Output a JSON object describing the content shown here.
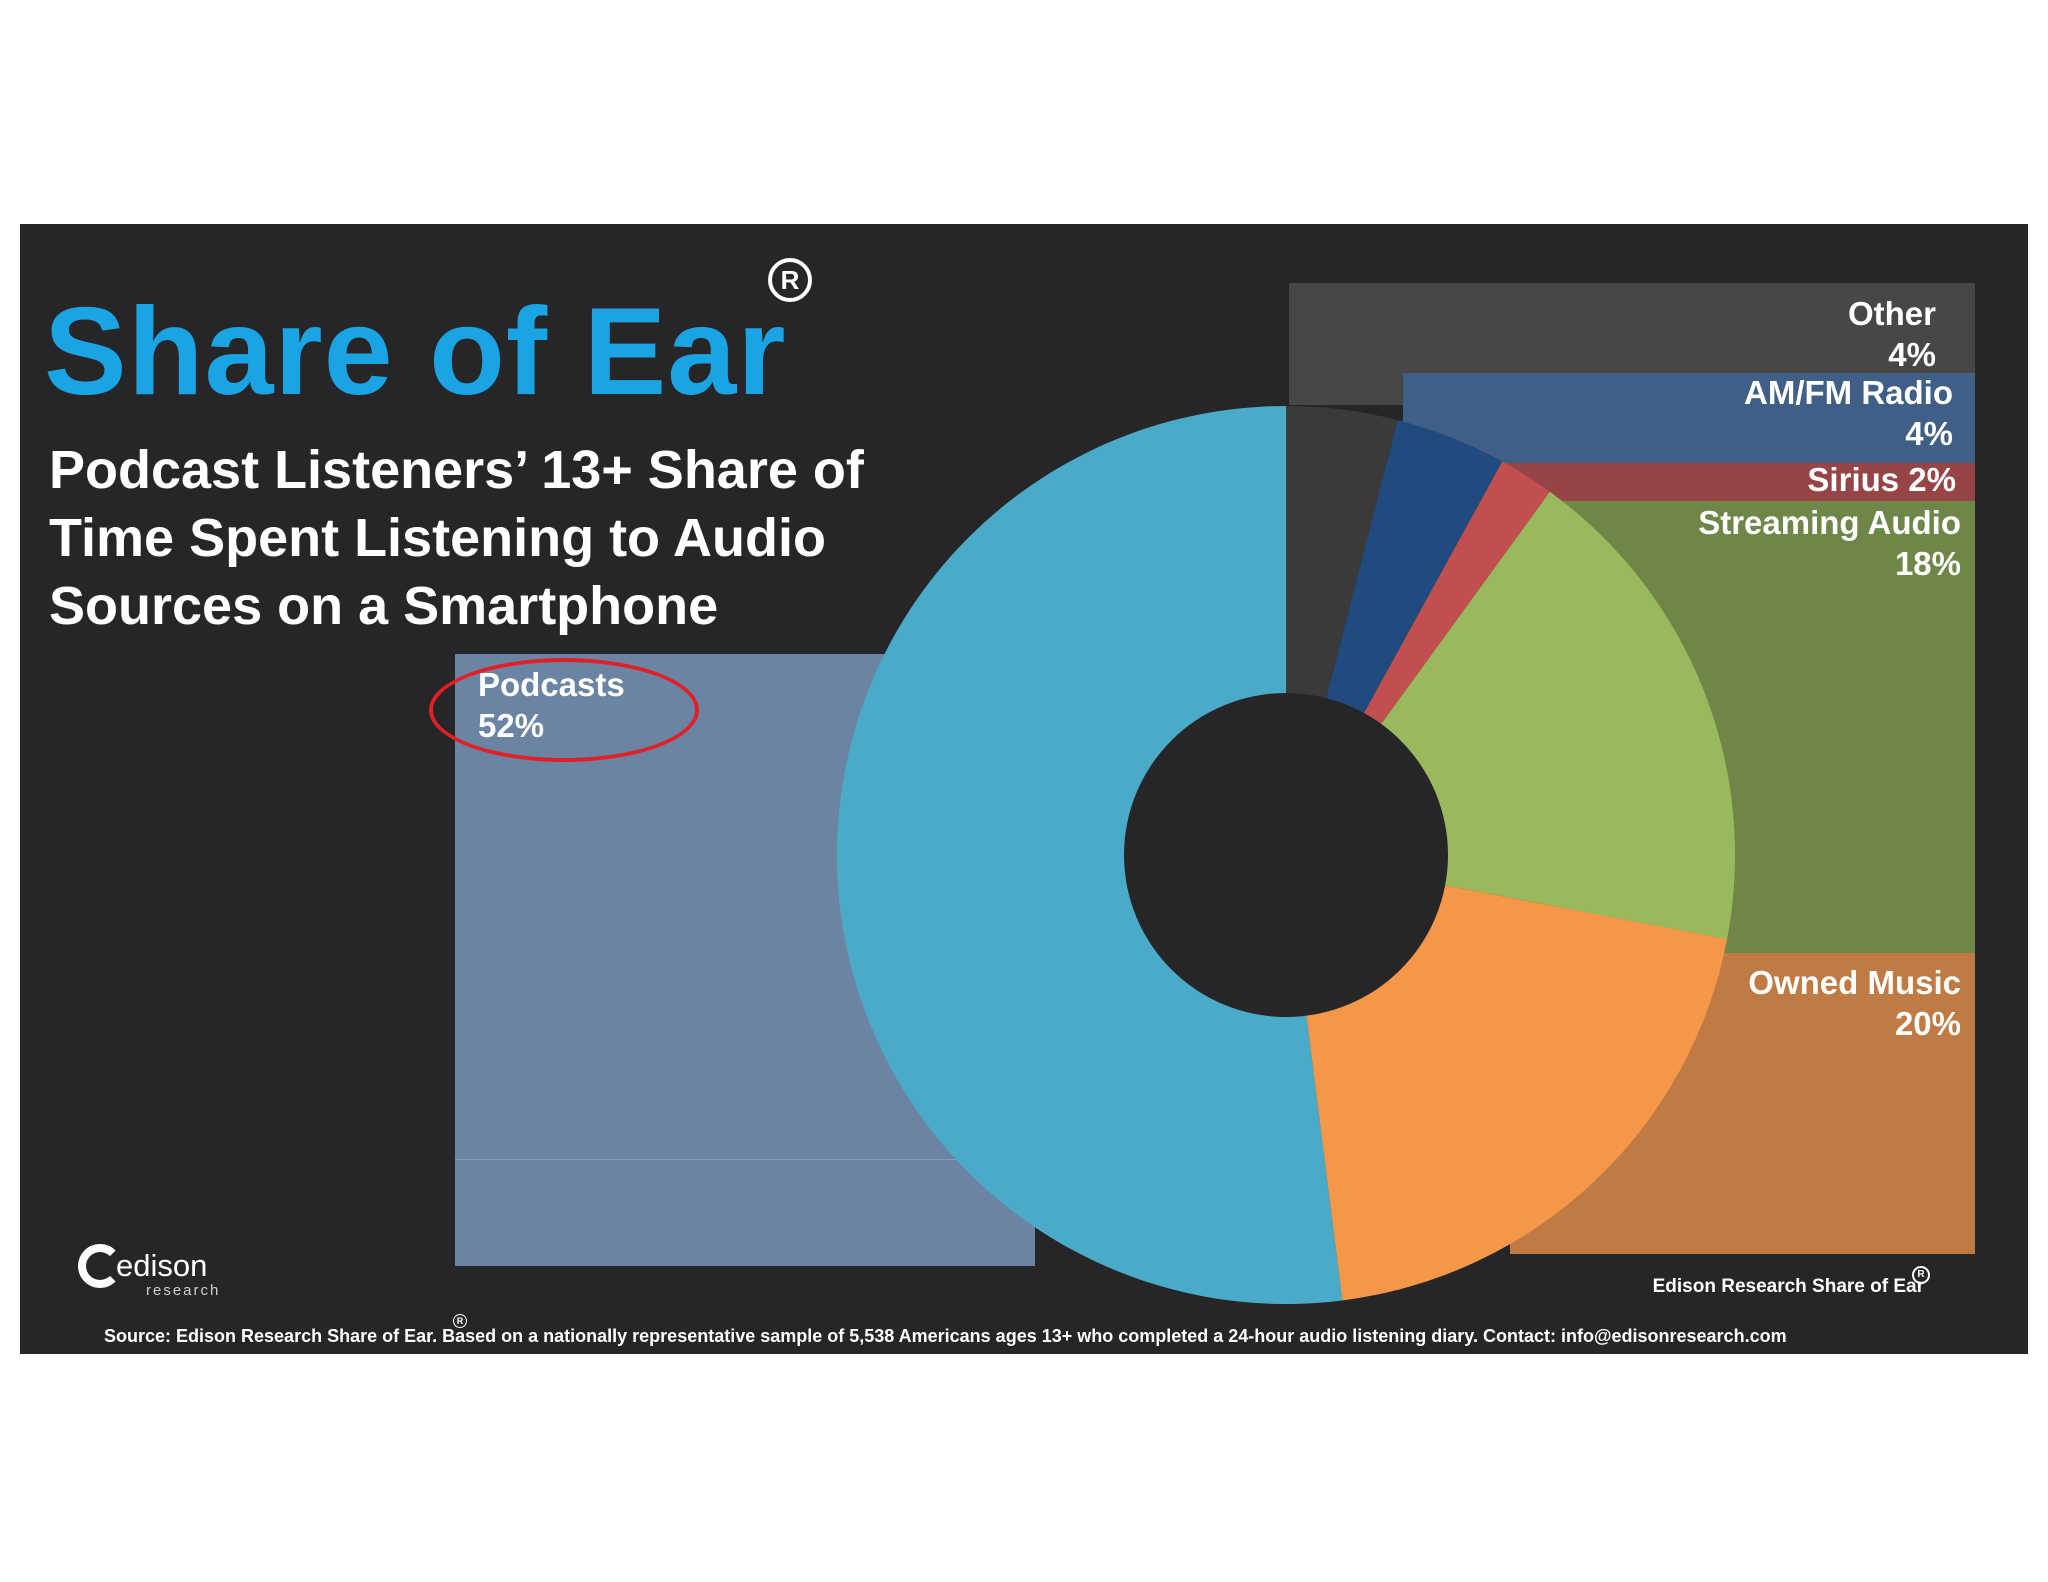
{
  "header": {
    "title": "Share of Ear",
    "registered_mark": "R",
    "subtitle": "Podcast Listeners’ 13+ Share of Time Spent Listening to Audio Sources on a Smartphone"
  },
  "chart_data": {
    "type": "pie",
    "title": "",
    "donut": true,
    "categories": [
      "Podcasts",
      "Owned Music",
      "Streaming Audio",
      "Sirius",
      "AM/FM Radio",
      "Other"
    ],
    "values": [
      52,
      20,
      18,
      2,
      4,
      4
    ],
    "slice_colors": [
      "#4aabc9",
      "#f59749",
      "#9ab95c",
      "#c14f4f",
      "#214a7e",
      "#3a3a3a"
    ],
    "labels": {
      "other": {
        "name": "Other",
        "value": "4%"
      },
      "amfm": {
        "name": "AM/FM Radio",
        "value": "4%"
      },
      "sirius": {
        "name": "Sirius 2%"
      },
      "streaming": {
        "name": "Streaming Audio",
        "value": "18%"
      },
      "owned": {
        "name": "Owned Music",
        "value": "20%"
      },
      "podcasts": {
        "name": "Podcasts",
        "value": "52%"
      }
    },
    "highlighted": "Podcasts"
  },
  "logo": {
    "wordmark": "edison",
    "subtext": "research"
  },
  "footer": {
    "credit": "Edison Research Share of Ear",
    "registered_mark": "R",
    "source": "Source: Edison Research Share of Ear. Based on a nationally representative sample of 5,538 Americans ages 13+ who completed a 24-hour audio listening diary.  Contact: info@edisonresearch.com"
  },
  "colors": {
    "background": "#262628",
    "title_blue": "#1aa4e3",
    "highlight_red": "#e11f26"
  }
}
